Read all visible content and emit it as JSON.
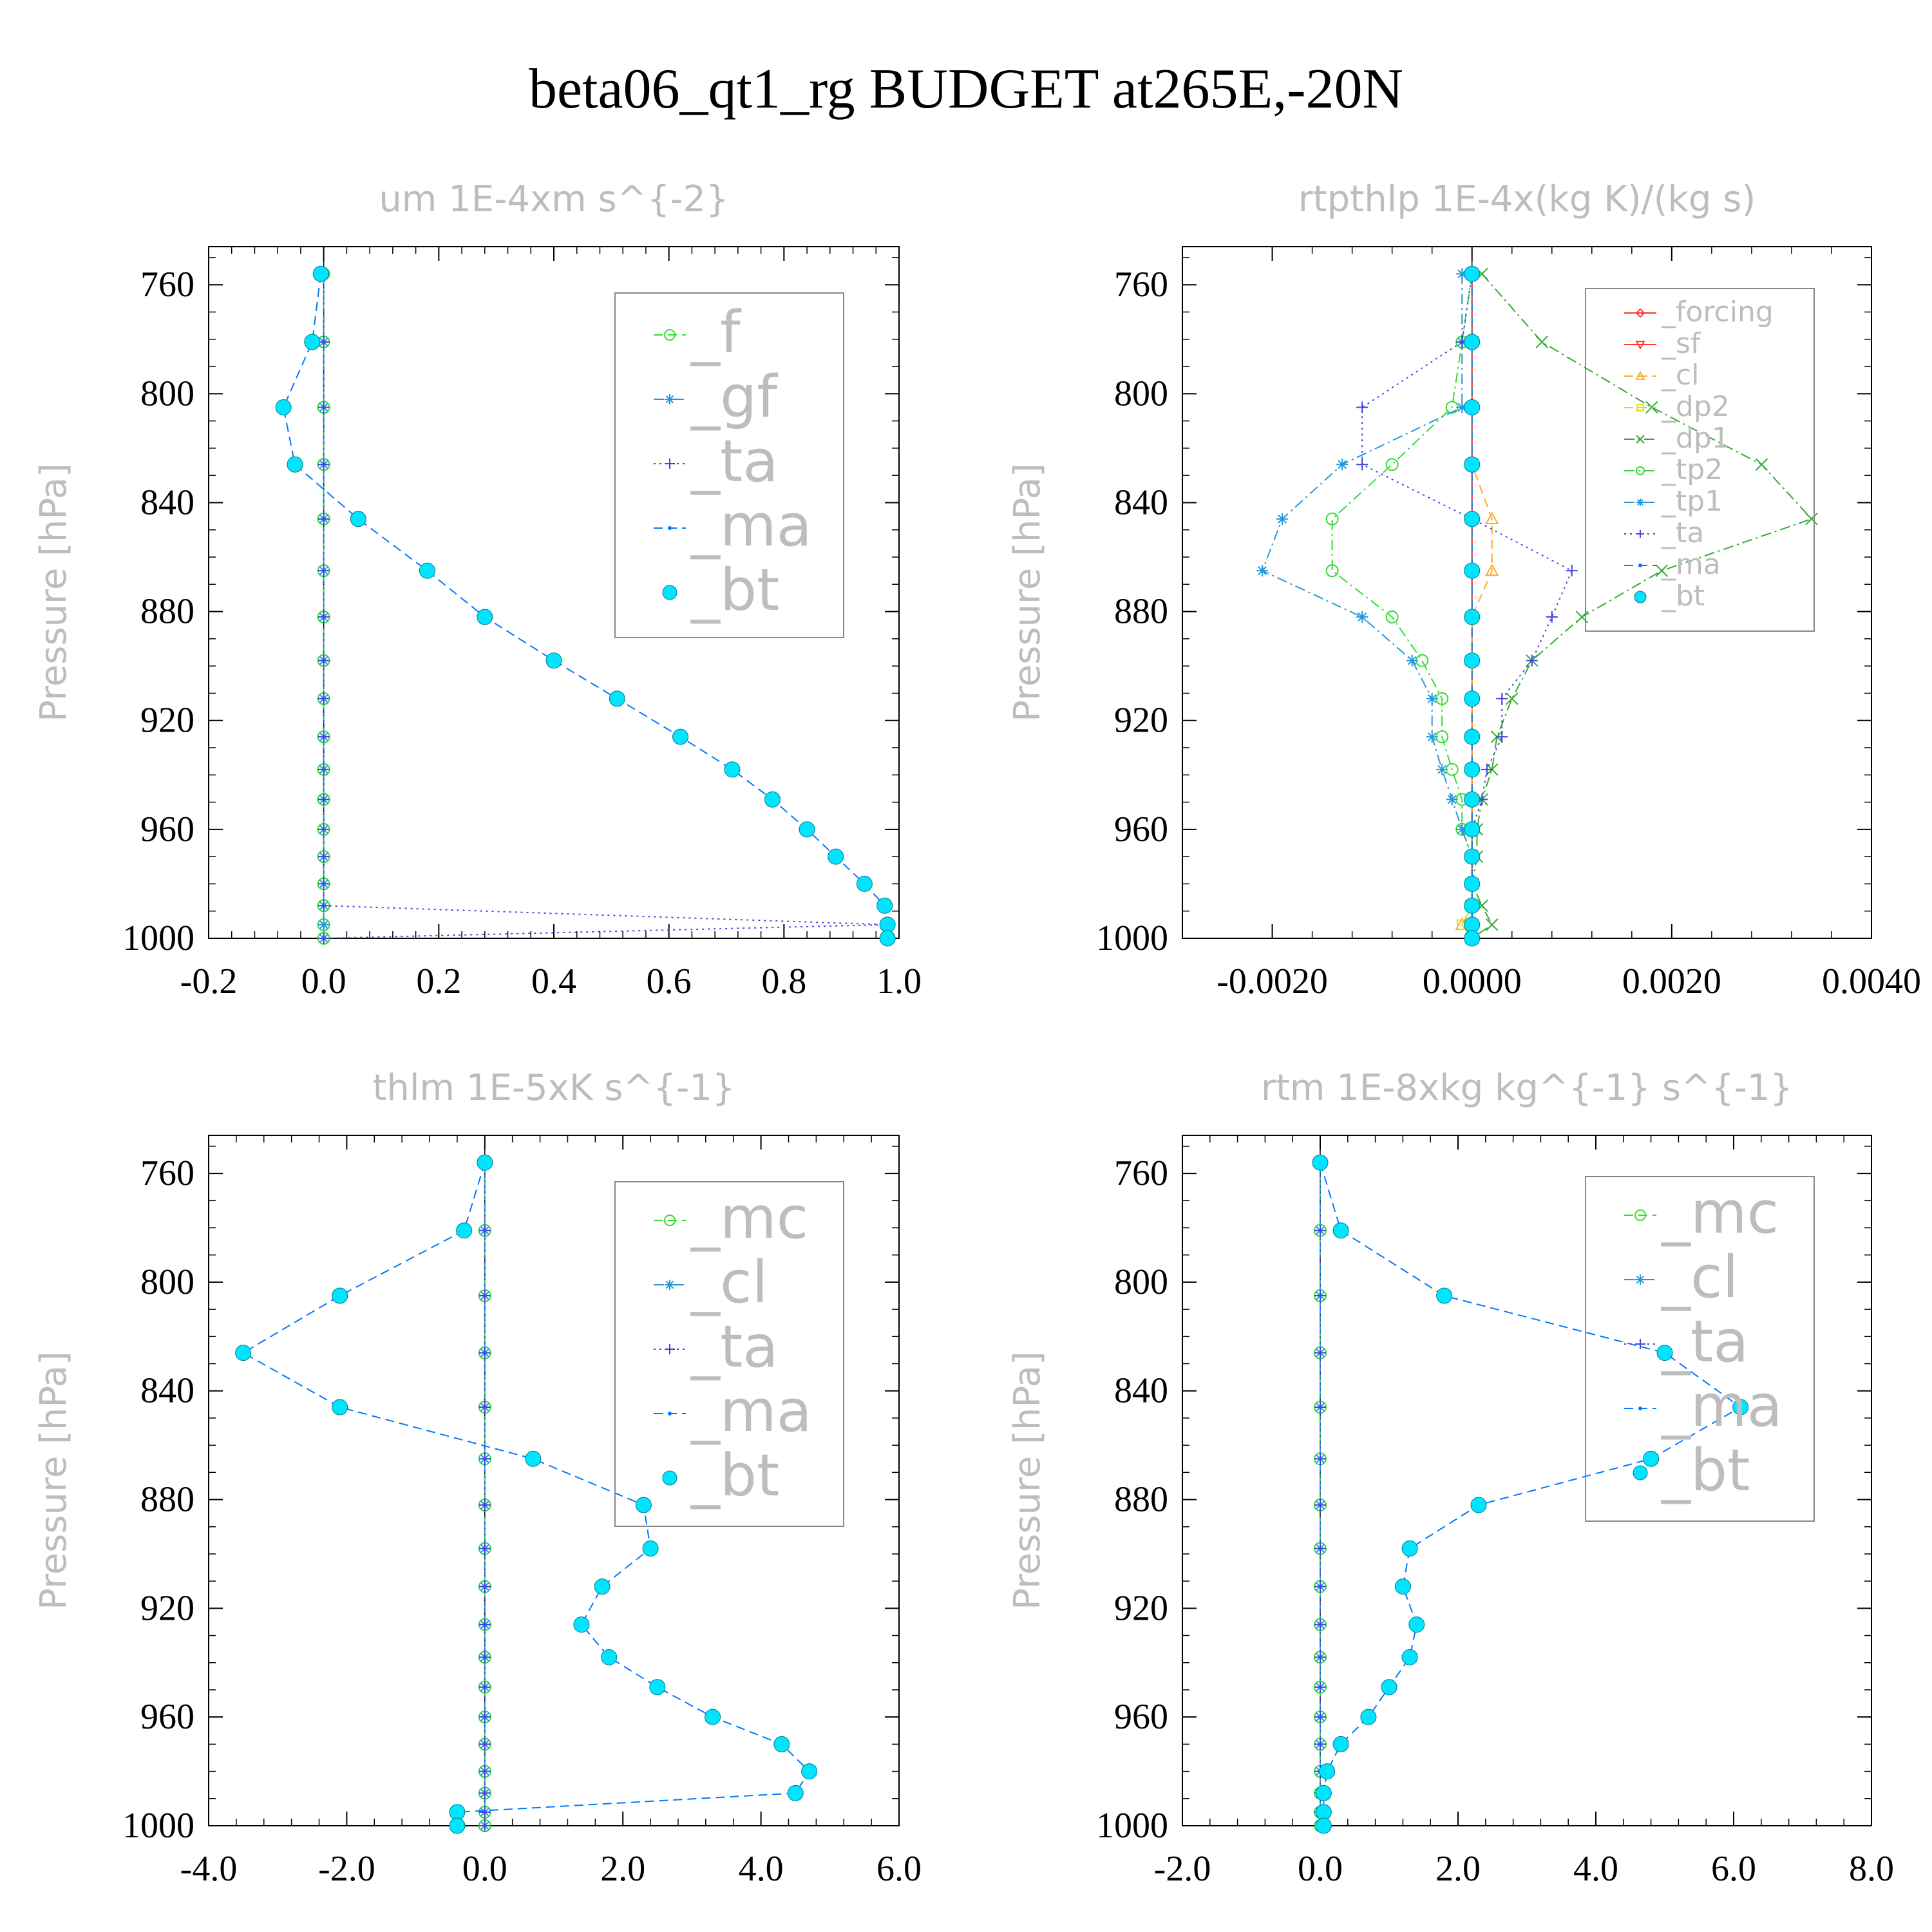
{
  "title": "beta06_qt1_rg  BUDGET at265E,-20N",
  "colors": {
    "f": "#33dd33",
    "mc": "#33dd33",
    "gf": "#2299dd",
    "cl_blue": "#2299dd",
    "ta": "#4444dd",
    "ma": "#0077ff",
    "bt": "#00e5ff",
    "forcing": "#ff3333",
    "sf": "#ff3333",
    "cl_orange": "#ffaa22",
    "dp2": "#dddd00",
    "dp1": "#33aa33",
    "tp2": "#33dd33",
    "tp1": "#2299dd",
    "axis": "#000000",
    "label_gray": "#bdbdbd"
  },
  "chart_data": [
    {
      "type": "line",
      "title": "um  1E-4xm s^{-2}",
      "ylabel": "Pressure [hPa]",
      "ylim": [
        1000,
        746
      ],
      "yticks": [
        "760",
        "800",
        "840",
        "880",
        "920",
        "960",
        "1000"
      ],
      "xlim": [
        -0.2,
        1.0
      ],
      "xticks": [
        "-0.2",
        "0.0",
        "0.2",
        "0.4",
        "0.6",
        "0.8",
        "1.0"
      ],
      "legend": "top-right",
      "pressure": [
        756,
        781,
        805,
        826,
        846,
        865,
        882,
        898,
        912,
        926,
        938,
        949,
        960,
        970,
        980,
        988,
        995,
        1000
      ],
      "series": [
        {
          "name": "_f",
          "color": "#33dd33",
          "marker": "circle",
          "style": "dash",
          "values": [
            0,
            0,
            0,
            0,
            0,
            0,
            0,
            0,
            0,
            0,
            0,
            0,
            0,
            0,
            0,
            0,
            0,
            0
          ]
        },
        {
          "name": "_gf",
          "color": "#2299dd",
          "marker": "star",
          "style": "dashdot",
          "values": [
            0,
            0,
            0,
            0,
            0,
            0,
            0,
            0,
            0,
            0,
            0,
            0,
            0,
            0,
            0,
            0,
            0,
            0
          ]
        },
        {
          "name": "_ta",
          "color": "#4444dd",
          "marker": "plus",
          "style": "dot",
          "values": [
            0,
            0,
            0,
            0,
            0,
            0,
            0,
            0,
            0,
            0,
            0,
            0,
            0,
            0,
            0,
            0,
            0.98,
            0
          ]
        },
        {
          "name": "_ma",
          "color": "#0077ff",
          "marker": "dot",
          "style": "dash",
          "values": [
            -0.005,
            -0.02,
            -0.07,
            -0.05,
            0.06,
            0.18,
            0.28,
            0.4,
            0.51,
            0.62,
            0.71,
            0.78,
            0.84,
            0.89,
            0.94,
            0.975,
            0.98,
            0.98
          ]
        },
        {
          "name": "_bt",
          "color": "#00e5ff",
          "marker": "filled",
          "style": "none",
          "values": [
            -0.005,
            -0.02,
            -0.07,
            -0.05,
            0.06,
            0.18,
            0.28,
            0.4,
            0.51,
            0.62,
            0.71,
            0.78,
            0.84,
            0.89,
            0.94,
            0.975,
            0.98,
            0.98
          ]
        }
      ]
    },
    {
      "type": "line",
      "title": "rtpthlp  1E-4x(kg K)/(kg s)",
      "ylabel": "Pressure [hPa]",
      "ylim": [
        1000,
        746
      ],
      "yticks": [
        "760",
        "800",
        "840",
        "880",
        "920",
        "960",
        "1000"
      ],
      "xlim": [
        -0.0029,
        0.004
      ],
      "xticks": [
        "-0.0020",
        "0.0000",
        "0.0020",
        "0.0040"
      ],
      "legend": "top-right",
      "pressure": [
        756,
        781,
        805,
        826,
        846,
        865,
        882,
        898,
        912,
        926,
        938,
        949,
        960,
        970,
        980,
        988,
        995,
        1000
      ],
      "series": [
        {
          "name": "_forcing",
          "color": "#ff3333",
          "marker": "diamond",
          "style": "solid",
          "values": [
            0,
            0,
            0,
            0,
            0,
            0,
            0,
            0,
            0,
            0,
            0,
            0,
            0,
            0,
            0,
            0,
            0,
            0
          ]
        },
        {
          "name": "_sf",
          "color": "#ff3333",
          "marker": "triangle-down",
          "style": "solid",
          "values": [
            0,
            0,
            0,
            0,
            0,
            0,
            0,
            0,
            0,
            0,
            0,
            0,
            0,
            0,
            0,
            0,
            0,
            0
          ]
        },
        {
          "name": "_cl",
          "color": "#ffaa22",
          "marker": "triangle",
          "style": "dash",
          "values": [
            0,
            0,
            0,
            0,
            0.0002,
            0.0002,
            0,
            0,
            0,
            0,
            0,
            0,
            0,
            0,
            0,
            0,
            -0.0001,
            0
          ]
        },
        {
          "name": "_dp2",
          "color": "#dddd00",
          "marker": "square",
          "style": "dash",
          "values": [
            0,
            0,
            0,
            0,
            0,
            0,
            0,
            0,
            0,
            0,
            0,
            0,
            0,
            0,
            0,
            0,
            -0.0001,
            0
          ]
        },
        {
          "name": "_dp1",
          "color": "#33aa33",
          "marker": "cross",
          "style": "dashdot",
          "values": [
            0.0001,
            0.0007,
            0.0018,
            0.0029,
            0.0034,
            0.0019,
            0.0011,
            0.0006,
            0.0004,
            0.00025,
            0.0002,
            0.0001,
            5e-05,
            5e-05,
            0,
            0.0001,
            0.0002,
            0
          ]
        },
        {
          "name": "_tp2",
          "color": "#33dd33",
          "marker": "circle",
          "style": "dashdot",
          "values": [
            0,
            -0.0001,
            -0.0002,
            -0.0008,
            -0.0014,
            -0.0014,
            -0.0008,
            -0.0005,
            -0.0003,
            -0.0003,
            -0.0002,
            -0.0001,
            -0.0001,
            0,
            0,
            0,
            0,
            0
          ]
        },
        {
          "name": "_tp1",
          "color": "#2299dd",
          "marker": "star",
          "style": "dashdot",
          "values": [
            -0.0001,
            -0.0001,
            -0.0001,
            -0.0013,
            -0.0019,
            -0.0021,
            -0.0011,
            -0.0006,
            -0.0004,
            -0.0004,
            -0.0003,
            -0.0002,
            -0.0001,
            0,
            0,
            0,
            0,
            0
          ]
        },
        {
          "name": "_ta",
          "color": "#4444dd",
          "marker": "plus",
          "style": "dot",
          "values": [
            0,
            -0.0001,
            -0.0011,
            -0.0011,
            0,
            0.001,
            0.0008,
            0.0006,
            0.0003,
            0.0003,
            0.00015,
            0.0001,
            0,
            0,
            0,
            0,
            0,
            0
          ]
        },
        {
          "name": "_ma",
          "color": "#0077ff",
          "marker": "dot",
          "style": "dash",
          "values": [
            0,
            0,
            0,
            0,
            0,
            0,
            0,
            0,
            0,
            0,
            0,
            0,
            0,
            0,
            0,
            0,
            0,
            0
          ]
        },
        {
          "name": "_bt",
          "color": "#00e5ff",
          "marker": "filled",
          "style": "none",
          "values": [
            0,
            0,
            0,
            0,
            0,
            0,
            0,
            0,
            0,
            0,
            0,
            0,
            0,
            0,
            0,
            0,
            0,
            0
          ]
        }
      ]
    },
    {
      "type": "line",
      "title": "thlm  1E-5xK s^{-1}",
      "ylabel": "Pressure [hPa]",
      "ylim": [
        1000,
        746
      ],
      "yticks": [
        "760",
        "800",
        "840",
        "880",
        "920",
        "960",
        "1000"
      ],
      "xlim": [
        -4.0,
        6.0
      ],
      "xticks": [
        "-4.0",
        "-2.0",
        "0.0",
        "2.0",
        "4.0",
        "6.0"
      ],
      "legend": "top-right",
      "pressure": [
        756,
        781,
        805,
        826,
        846,
        865,
        882,
        898,
        912,
        926,
        938,
        949,
        960,
        970,
        980,
        988,
        995,
        1000
      ],
      "series": [
        {
          "name": "_mc",
          "color": "#33dd33",
          "marker": "circle",
          "style": "dash",
          "values": [
            0,
            0,
            0,
            0,
            0,
            0,
            0,
            0,
            0,
            0,
            0,
            0,
            0,
            0,
            0,
            0,
            0,
            0
          ]
        },
        {
          "name": "_cl",
          "color": "#2299dd",
          "marker": "star",
          "style": "dashdot",
          "values": [
            0,
            0,
            0,
            0,
            0,
            0,
            0,
            0,
            0,
            0,
            0,
            0,
            0,
            0,
            0,
            0,
            0,
            0
          ]
        },
        {
          "name": "_ta",
          "color": "#4444dd",
          "marker": "plus",
          "style": "dot",
          "values": [
            0,
            0,
            0,
            0,
            0,
            0,
            0,
            0,
            0,
            0,
            0,
            0,
            0,
            0,
            0,
            0,
            0,
            0
          ]
        },
        {
          "name": "_ma",
          "color": "#0077ff",
          "marker": "dot",
          "style": "dash",
          "values": [
            0,
            -0.3,
            -2.1,
            -3.5,
            -2.1,
            0.7,
            2.3,
            2.4,
            1.7,
            1.4,
            1.8,
            2.5,
            3.3,
            4.3,
            4.7,
            4.5,
            -0.4,
            -0.4
          ]
        },
        {
          "name": "_bt",
          "color": "#00e5ff",
          "marker": "filled",
          "style": "none",
          "values": [
            0,
            -0.3,
            -2.1,
            -3.5,
            -2.1,
            0.7,
            2.3,
            2.4,
            1.7,
            1.4,
            1.8,
            2.5,
            3.3,
            4.3,
            4.7,
            4.5,
            -0.4,
            -0.4
          ]
        }
      ]
    },
    {
      "type": "line",
      "title": "rtm  1E-8xkg kg^{-1} s^{-1}",
      "ylabel": "Pressure [hPa]",
      "ylim": [
        1000,
        746
      ],
      "yticks": [
        "760",
        "800",
        "840",
        "880",
        "920",
        "960",
        "1000"
      ],
      "xlim": [
        -2.0,
        8.0
      ],
      "xticks": [
        "-2.0",
        "0.0",
        "2.0",
        "4.0",
        "6.0",
        "8.0"
      ],
      "legend": "top-right",
      "pressure": [
        756,
        781,
        805,
        826,
        846,
        865,
        882,
        898,
        912,
        926,
        938,
        949,
        960,
        970,
        980,
        988,
        995,
        1000
      ],
      "series": [
        {
          "name": "_mc",
          "color": "#33dd33",
          "marker": "circle",
          "style": "dash",
          "values": [
            0,
            0,
            0,
            0,
            0,
            0,
            0,
            0,
            0,
            0,
            0,
            0,
            0,
            0,
            0,
            0,
            0,
            0
          ]
        },
        {
          "name": "_cl",
          "color": "#2299dd",
          "marker": "star",
          "style": "dashdot",
          "values": [
            0,
            0,
            0,
            0,
            0,
            0,
            0,
            0,
            0,
            0,
            0,
            0,
            0,
            0,
            0,
            0,
            0,
            0
          ]
        },
        {
          "name": "_ta",
          "color": "#4444dd",
          "marker": "plus",
          "style": "dot",
          "values": [
            0,
            0,
            0,
            0,
            0,
            0,
            0,
            0,
            0,
            0,
            0,
            0,
            0,
            0,
            0,
            0,
            0,
            0
          ]
        },
        {
          "name": "_ma",
          "color": "#0077ff",
          "marker": "dot",
          "style": "dash",
          "values": [
            0.0,
            0.3,
            1.8,
            5.0,
            6.1,
            4.8,
            2.3,
            1.3,
            1.2,
            1.4,
            1.3,
            1.0,
            0.7,
            0.3,
            0.1,
            0.05,
            0.05,
            0.05
          ]
        },
        {
          "name": "_bt",
          "color": "#00e5ff",
          "marker": "filled",
          "style": "none",
          "values": [
            0.0,
            0.3,
            1.8,
            5.0,
            6.1,
            4.8,
            2.3,
            1.3,
            1.2,
            1.4,
            1.3,
            1.0,
            0.7,
            0.3,
            0.1,
            0.05,
            0.05,
            0.05
          ]
        }
      ]
    }
  ]
}
